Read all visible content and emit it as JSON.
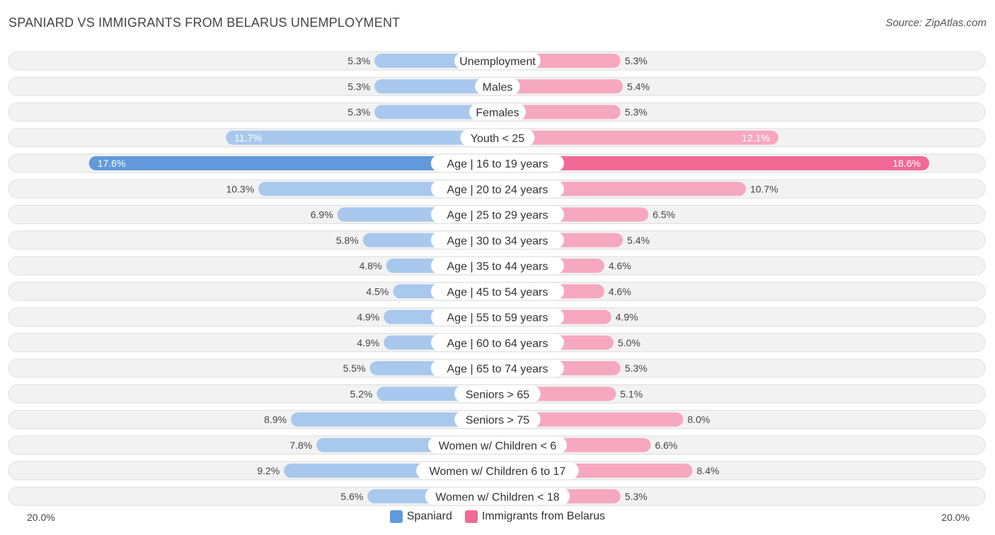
{
  "title": "SPANIARD VS IMMIGRANTS FROM BELARUS UNEMPLOYMENT",
  "source": "Source: ZipAtlas.com",
  "colors": {
    "left_light": "#a9c8ed",
    "left_strong": "#6199dc",
    "right_light": "#f5a8c0",
    "right_strong": "#f06a95"
  },
  "chart_data": {
    "type": "bar",
    "orientation": "horizontal-diverging",
    "xlim": [
      -20,
      20
    ],
    "axis_left_label": "20.0%",
    "axis_right_label": "20.0%",
    "legend_placement": "bottom-center",
    "categories": [
      "Unemployment",
      "Males",
      "Females",
      "Youth < 25",
      "Age | 16 to 19 years",
      "Age | 20 to 24 years",
      "Age | 25 to 29 years",
      "Age | 30 to 34 years",
      "Age | 35 to 44 years",
      "Age | 45 to 54 years",
      "Age | 55 to 59 years",
      "Age | 60 to 64 years",
      "Age | 65 to 74 years",
      "Seniors > 65",
      "Seniors > 75",
      "Women w/ Children < 6",
      "Women w/ Children 6 to 17",
      "Women w/ Children < 18"
    ],
    "series": [
      {
        "name": "Spaniard",
        "values": [
          5.3,
          5.3,
          5.3,
          11.7,
          17.6,
          10.3,
          6.9,
          5.8,
          4.8,
          4.5,
          4.9,
          4.9,
          5.5,
          5.2,
          8.9,
          7.8,
          9.2,
          5.6
        ],
        "labels": [
          "5.3%",
          "5.3%",
          "5.3%",
          "11.7%",
          "17.6%",
          "10.3%",
          "6.9%",
          "5.8%",
          "4.8%",
          "4.5%",
          "4.9%",
          "4.9%",
          "5.5%",
          "5.2%",
          "8.9%",
          "7.8%",
          "9.2%",
          "5.6%"
        ]
      },
      {
        "name": "Immigrants from Belarus",
        "values": [
          5.3,
          5.4,
          5.3,
          12.1,
          18.6,
          10.7,
          6.5,
          5.4,
          4.6,
          4.6,
          4.9,
          5.0,
          5.3,
          5.1,
          8.0,
          6.6,
          8.4,
          5.3
        ],
        "labels": [
          "5.3%",
          "5.4%",
          "5.3%",
          "12.1%",
          "18.6%",
          "10.7%",
          "6.5%",
          "5.4%",
          "4.6%",
          "4.6%",
          "4.9%",
          "5.0%",
          "5.3%",
          "5.1%",
          "8.0%",
          "6.6%",
          "8.4%",
          "5.3%"
        ]
      }
    ]
  }
}
